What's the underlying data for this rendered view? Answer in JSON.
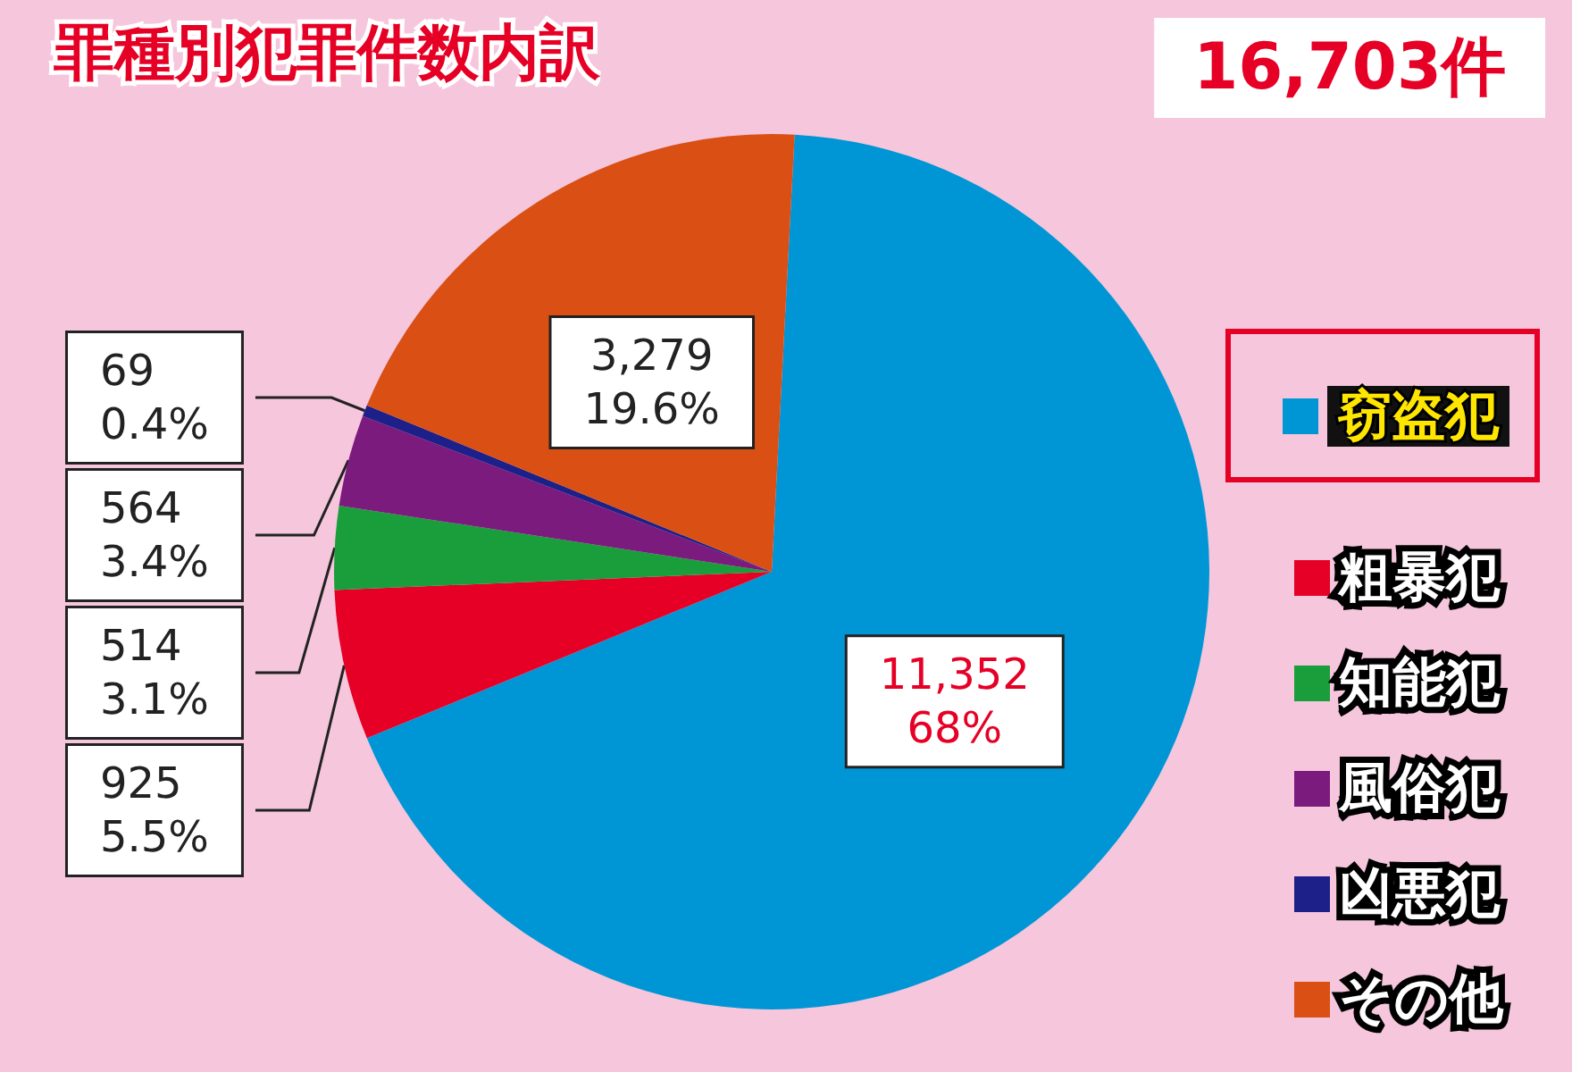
{
  "chart_data": {
    "type": "pie",
    "title": "罪種別犯罪件数内訳",
    "annotations": [
      "16,703件"
    ],
    "categories": [
      "窃盗犯",
      "粗暴犯",
      "知能犯",
      "風俗犯",
      "凶悪犯",
      "その他"
    ],
    "values": [
      11352,
      925,
      514,
      564,
      69,
      3279
    ],
    "value_labels": [
      "11,352\n68%",
      "925\n5.5%",
      "514\n3.1%",
      "564\n3.4%",
      "69\n0.4%",
      "3,279\n19.6%"
    ],
    "colors": [
      "#0096d6",
      "#e60026",
      "#1a9e3c",
      "#7b1b7e",
      "#1d2088",
      "#d94f14"
    ],
    "legend": "right"
  }
}
